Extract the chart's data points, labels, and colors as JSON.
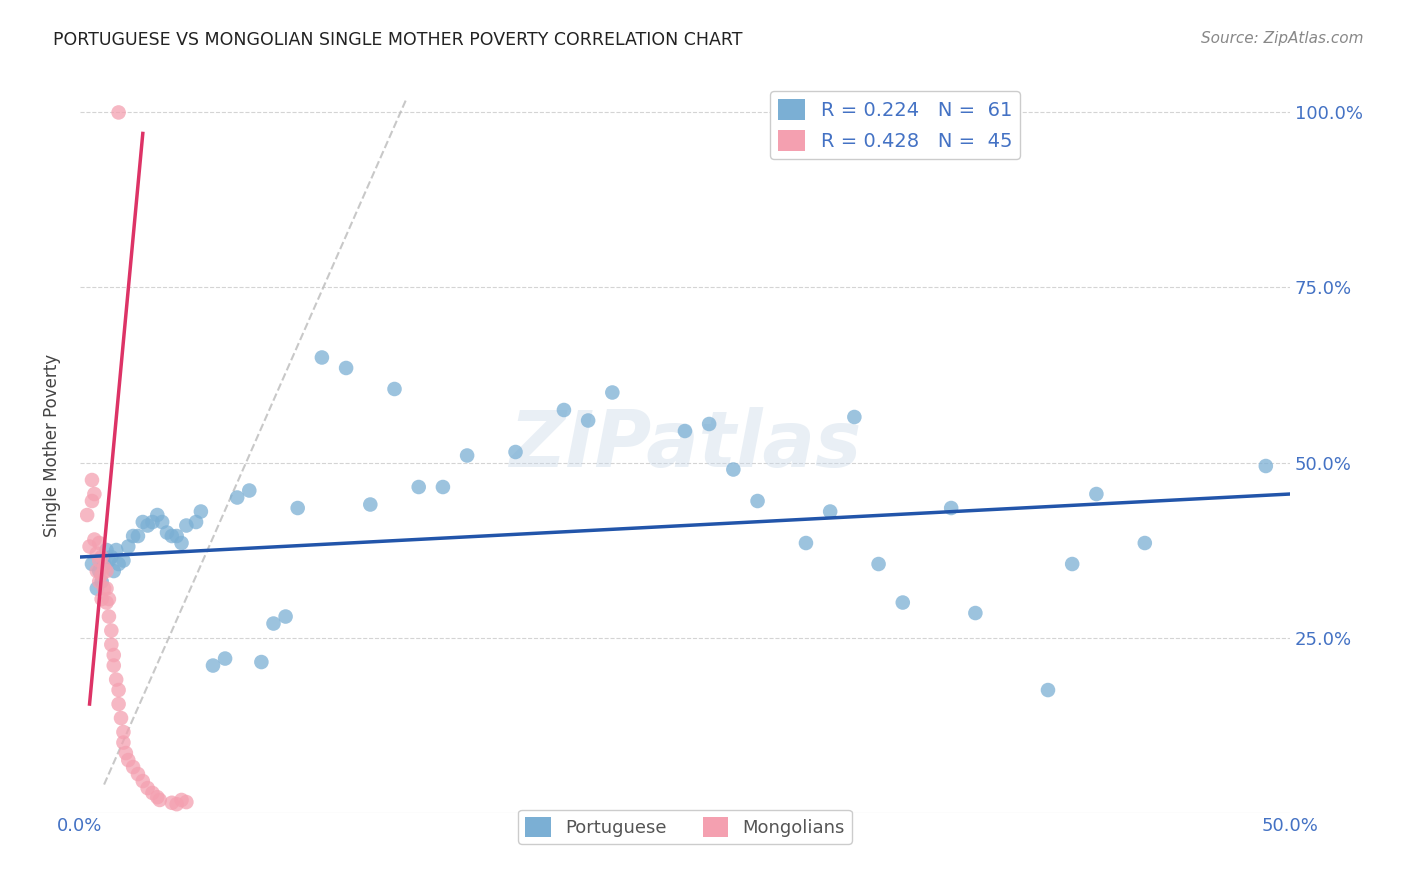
{
  "title": "PORTUGUESE VS MONGOLIAN SINGLE MOTHER POVERTY CORRELATION CHART",
  "source": "Source: ZipAtlas.com",
  "ylabel": "Single Mother Poverty",
  "xlim": [
    0.0,
    0.5
  ],
  "ylim": [
    0.0,
    1.05
  ],
  "blue_color": "#7bafd4",
  "pink_color": "#f4a0b0",
  "blue_line_color": "#2255aa",
  "pink_line_color": "#dd3366",
  "grey_dash_color": "#bbbbbb",
  "blue_scatter": [
    [
      0.005,
      0.355
    ],
    [
      0.007,
      0.32
    ],
    [
      0.008,
      0.345
    ],
    [
      0.009,
      0.33
    ],
    [
      0.01,
      0.355
    ],
    [
      0.011,
      0.375
    ],
    [
      0.012,
      0.36
    ],
    [
      0.013,
      0.365
    ],
    [
      0.014,
      0.345
    ],
    [
      0.015,
      0.375
    ],
    [
      0.016,
      0.355
    ],
    [
      0.018,
      0.36
    ],
    [
      0.02,
      0.38
    ],
    [
      0.022,
      0.395
    ],
    [
      0.024,
      0.395
    ],
    [
      0.026,
      0.415
    ],
    [
      0.028,
      0.41
    ],
    [
      0.03,
      0.415
    ],
    [
      0.032,
      0.425
    ],
    [
      0.034,
      0.415
    ],
    [
      0.036,
      0.4
    ],
    [
      0.038,
      0.395
    ],
    [
      0.04,
      0.395
    ],
    [
      0.042,
      0.385
    ],
    [
      0.044,
      0.41
    ],
    [
      0.048,
      0.415
    ],
    [
      0.05,
      0.43
    ],
    [
      0.055,
      0.21
    ],
    [
      0.06,
      0.22
    ],
    [
      0.065,
      0.45
    ],
    [
      0.07,
      0.46
    ],
    [
      0.075,
      0.215
    ],
    [
      0.08,
      0.27
    ],
    [
      0.085,
      0.28
    ],
    [
      0.09,
      0.435
    ],
    [
      0.1,
      0.65
    ],
    [
      0.11,
      0.635
    ],
    [
      0.12,
      0.44
    ],
    [
      0.13,
      0.605
    ],
    [
      0.14,
      0.465
    ],
    [
      0.15,
      0.465
    ],
    [
      0.16,
      0.51
    ],
    [
      0.18,
      0.515
    ],
    [
      0.2,
      0.575
    ],
    [
      0.21,
      0.56
    ],
    [
      0.22,
      0.6
    ],
    [
      0.25,
      0.545
    ],
    [
      0.26,
      0.555
    ],
    [
      0.27,
      0.49
    ],
    [
      0.28,
      0.445
    ],
    [
      0.3,
      0.385
    ],
    [
      0.31,
      0.43
    ],
    [
      0.32,
      0.565
    ],
    [
      0.33,
      0.355
    ],
    [
      0.34,
      0.3
    ],
    [
      0.36,
      0.435
    ],
    [
      0.37,
      0.285
    ],
    [
      0.4,
      0.175
    ],
    [
      0.41,
      0.355
    ],
    [
      0.42,
      0.455
    ],
    [
      0.44,
      0.385
    ],
    [
      0.49,
      0.495
    ]
  ],
  "pink_scatter": [
    [
      0.003,
      0.425
    ],
    [
      0.004,
      0.38
    ],
    [
      0.005,
      0.475
    ],
    [
      0.005,
      0.445
    ],
    [
      0.006,
      0.455
    ],
    [
      0.006,
      0.39
    ],
    [
      0.007,
      0.37
    ],
    [
      0.007,
      0.345
    ],
    [
      0.008,
      0.385
    ],
    [
      0.008,
      0.36
    ],
    [
      0.008,
      0.33
    ],
    [
      0.009,
      0.365
    ],
    [
      0.009,
      0.34
    ],
    [
      0.009,
      0.305
    ],
    [
      0.01,
      0.35
    ],
    [
      0.01,
      0.32
    ],
    [
      0.011,
      0.345
    ],
    [
      0.011,
      0.32
    ],
    [
      0.011,
      0.3
    ],
    [
      0.012,
      0.305
    ],
    [
      0.012,
      0.28
    ],
    [
      0.013,
      0.26
    ],
    [
      0.013,
      0.24
    ],
    [
      0.014,
      0.225
    ],
    [
      0.014,
      0.21
    ],
    [
      0.015,
      0.19
    ],
    [
      0.016,
      0.175
    ],
    [
      0.016,
      0.155
    ],
    [
      0.017,
      0.135
    ],
    [
      0.018,
      0.115
    ],
    [
      0.018,
      0.1
    ],
    [
      0.019,
      0.085
    ],
    [
      0.02,
      0.075
    ],
    [
      0.022,
      0.065
    ],
    [
      0.024,
      0.055
    ],
    [
      0.026,
      0.045
    ],
    [
      0.028,
      0.035
    ],
    [
      0.03,
      0.028
    ],
    [
      0.032,
      0.022
    ],
    [
      0.033,
      0.018
    ],
    [
      0.038,
      0.014
    ],
    [
      0.04,
      0.012
    ],
    [
      0.042,
      0.018
    ],
    [
      0.044,
      0.015
    ],
    [
      0.016,
      1.0
    ]
  ],
  "watermark": "ZIPatlas",
  "background_color": "#ffffff",
  "grid_color": "#d0d0d0"
}
